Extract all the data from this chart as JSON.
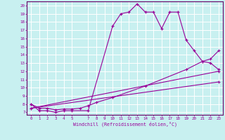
{
  "xlabel": "Windchill (Refroidissement éolien,°C)",
  "bg_color": "#c8f0f0",
  "line_color": "#990099",
  "grid_color": "#ffffff",
  "spine_color": "#660066",
  "xlim": [
    -0.5,
    23.5
  ],
  "ylim": [
    6.7,
    20.5
  ],
  "yticks": [
    7,
    8,
    9,
    10,
    11,
    12,
    13,
    14,
    15,
    16,
    17,
    18,
    19,
    20
  ],
  "xticks": [
    0,
    1,
    2,
    3,
    4,
    5,
    7,
    8,
    9,
    10,
    11,
    12,
    13,
    14,
    15,
    16,
    17,
    18,
    19,
    20,
    21,
    22,
    23
  ],
  "series1_x": [
    0,
    1,
    2,
    3,
    4,
    5,
    7,
    10,
    11,
    12,
    13,
    14,
    15,
    16,
    17,
    18,
    19,
    20,
    21,
    22,
    23
  ],
  "series1_y": [
    8.0,
    7.2,
    7.2,
    7.0,
    7.2,
    7.2,
    7.2,
    17.5,
    19.0,
    19.2,
    20.2,
    19.2,
    19.2,
    17.2,
    19.2,
    19.2,
    15.8,
    14.5,
    13.2,
    13.0,
    12.2
  ],
  "series2_x": [
    0,
    1,
    2,
    3,
    4,
    5,
    6,
    7,
    8,
    10,
    14,
    19,
    21,
    22,
    23
  ],
  "series2_y": [
    8.0,
    7.5,
    7.5,
    7.3,
    7.4,
    7.4,
    7.5,
    7.8,
    8.2,
    8.8,
    10.2,
    12.2,
    13.2,
    13.5,
    14.5
  ],
  "series3_x": [
    0,
    23
  ],
  "series3_y": [
    7.5,
    12.0
  ],
  "series4_x": [
    0,
    23
  ],
  "series4_y": [
    7.5,
    10.7
  ]
}
